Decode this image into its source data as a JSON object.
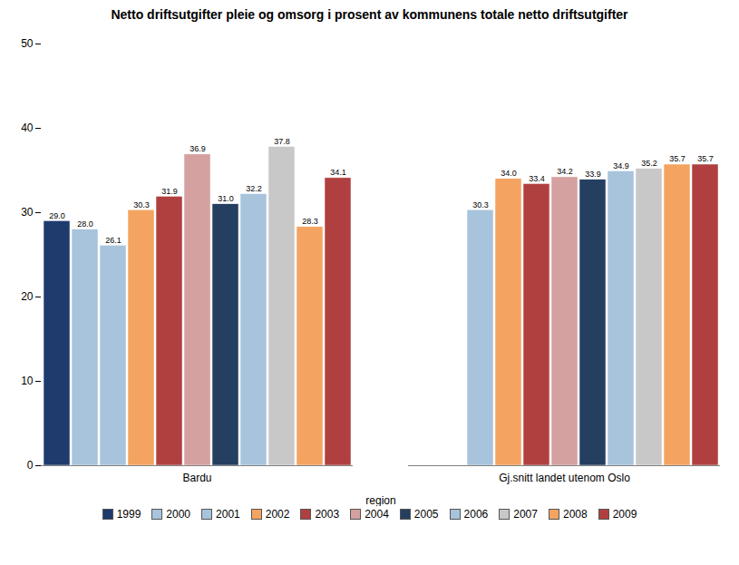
{
  "chart_data": {
    "type": "bar",
    "title": "Netto driftsutgifter pleie og omsorg i prosent av kommunens totale netto driftsutgifter",
    "xlabel": "region",
    "categories": [
      "Bardu",
      "Gj.snitt landet utenom Oslo"
    ],
    "series": [
      {
        "name": "1999",
        "color": "#1F3B6E",
        "values": [
          29.0,
          null
        ],
        "value_labels": [
          "29.0",
          null
        ]
      },
      {
        "name": "2000",
        "color": "#A8C4DC",
        "values": [
          28.0,
          null
        ],
        "value_labels": [
          "28.0",
          null
        ]
      },
      {
        "name": "2001",
        "color": "#A8C4DC",
        "values": [
          26.1,
          30.3
        ],
        "value_labels": [
          "26.1",
          "30.3"
        ]
      },
      {
        "name": "2002",
        "color": "#F4A460",
        "values": [
          30.3,
          34.0
        ],
        "value_labels": [
          "30.3",
          "34.0"
        ]
      },
      {
        "name": "2003",
        "color": "#B04040",
        "values": [
          31.9,
          33.4
        ],
        "value_labels": [
          "31.9",
          "33.4"
        ]
      },
      {
        "name": "2004",
        "color": "#D4A0A0",
        "values": [
          36.9,
          34.2
        ],
        "value_labels": [
          "36.9",
          "34.2"
        ]
      },
      {
        "name": "2005",
        "color": "#243F60",
        "values": [
          31.0,
          33.9
        ],
        "value_labels": [
          "31.0",
          "33.9"
        ]
      },
      {
        "name": "2006",
        "color": "#A8C4DC",
        "values": [
          32.2,
          34.9
        ],
        "value_labels": [
          "32.2",
          "34.9"
        ]
      },
      {
        "name": "2007",
        "color": "#C8C8C8",
        "values": [
          37.8,
          35.2
        ],
        "value_labels": [
          "37.8",
          "35.2"
        ]
      },
      {
        "name": "2008",
        "color": "#F4A460",
        "values": [
          28.3,
          35.7
        ],
        "value_labels": [
          "28.3",
          "35.7"
        ]
      },
      {
        "name": "2009",
        "color": "#B04040",
        "values": [
          34.1,
          35.7
        ],
        "value_labels": [
          "34.1",
          "35.7"
        ]
      }
    ],
    "ylim": [
      0,
      50
    ],
    "yticks": [
      0,
      10,
      20,
      30,
      40,
      50
    ],
    "grid": false,
    "legend": "bottom",
    "data_labels": true
  }
}
